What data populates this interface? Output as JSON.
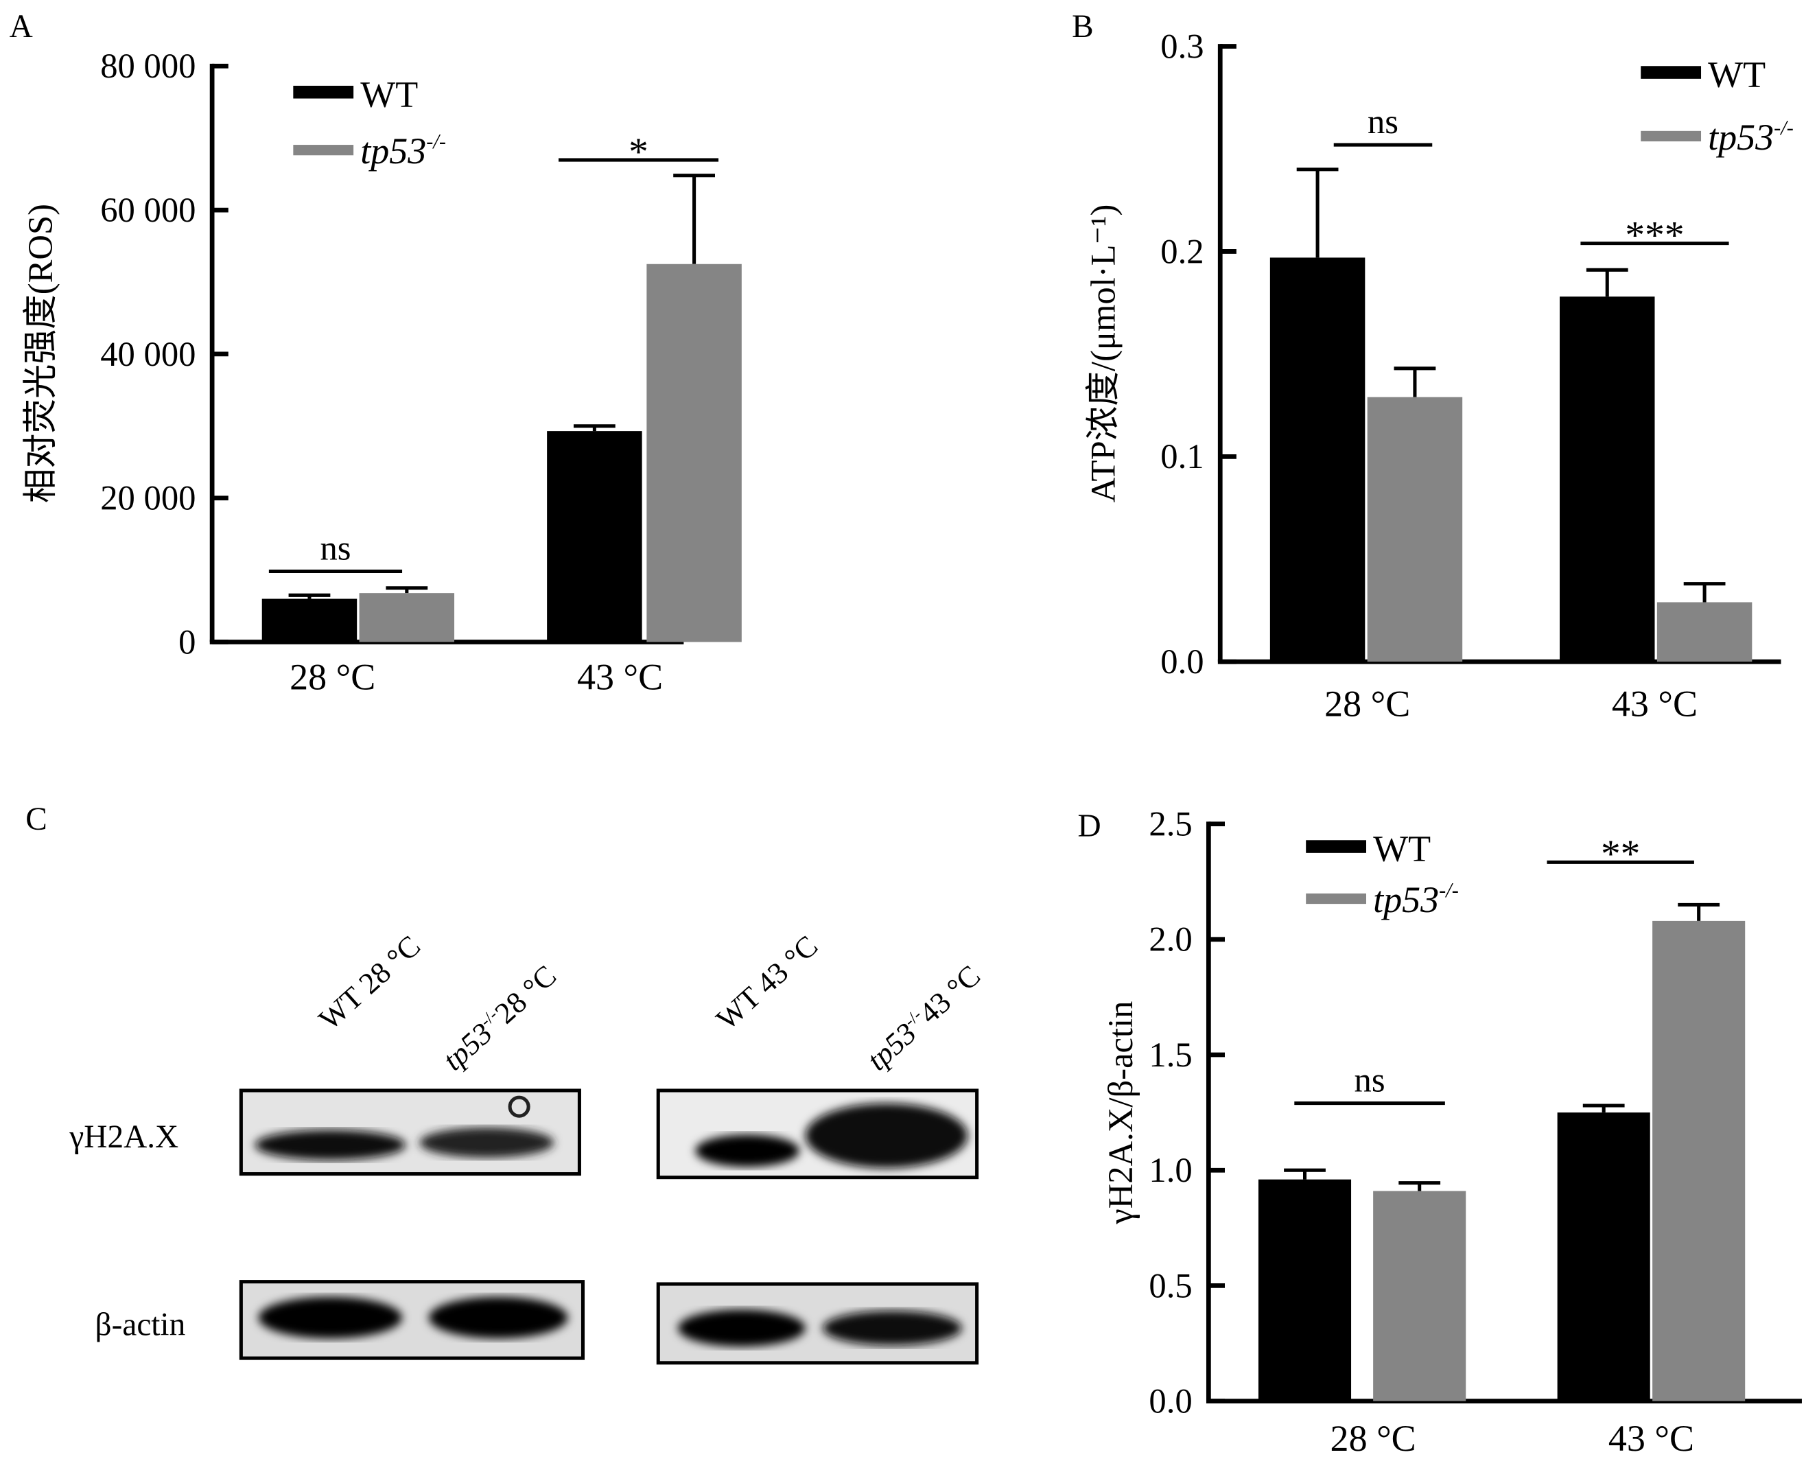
{
  "colors": {
    "wt": "#000000",
    "ko": "#858585"
  },
  "legend": {
    "wt": "WT",
    "ko": "tp53",
    "ko_sup": "-/-"
  },
  "chart_data": [
    {
      "panel": "A",
      "type": "bar",
      "ylabel": "相对荧光强度(ROS)",
      "ylim": [
        0,
        80000
      ],
      "yticks": [
        0,
        20000,
        40000,
        60000,
        80000
      ],
      "ytick_labels": [
        "0",
        "20 000",
        "40 000",
        "60 000",
        "80 000"
      ],
      "categories": [
        "28 °C",
        "43 °C"
      ],
      "series": [
        {
          "name": "WT",
          "values": [
            6000,
            29300
          ],
          "errors": [
            500,
            700
          ]
        },
        {
          "name": "tp53-/-",
          "values": [
            6800,
            52500
          ],
          "errors": [
            700,
            12300
          ]
        }
      ],
      "significance": [
        "ns",
        "*"
      ],
      "legend_position": "top-left"
    },
    {
      "panel": "B",
      "type": "bar",
      "ylabel": "ATP浓度/(μmol·L⁻¹)",
      "ylim": [
        0,
        0.3
      ],
      "yticks": [
        0,
        0.1,
        0.2,
        0.3
      ],
      "ytick_labels": [
        "0.0",
        "0.1",
        "0.2",
        "0.3"
      ],
      "categories": [
        "28 °C",
        "43 °C"
      ],
      "series": [
        {
          "name": "WT",
          "values": [
            0.197,
            0.178
          ],
          "errors": [
            0.043,
            0.013
          ]
        },
        {
          "name": "tp53-/-",
          "values": [
            0.129,
            0.029
          ],
          "errors": [
            0.014,
            0.009
          ]
        }
      ],
      "significance": [
        "ns",
        "***"
      ],
      "legend_position": "top-right"
    },
    {
      "panel": "D",
      "type": "bar",
      "ylabel": "γH2A.X/β-actin",
      "ylim": [
        0,
        2.5
      ],
      "yticks": [
        0,
        0.5,
        1,
        1.5,
        2,
        2.5
      ],
      "ytick_labels": [
        "0.0",
        "0.5",
        "1.0",
        "1.5",
        "2.0",
        "2.5"
      ],
      "categories": [
        "28 °C",
        "43 °C"
      ],
      "series": [
        {
          "name": "WT",
          "values": [
            0.96,
            1.25
          ],
          "errors": [
            0.04,
            0.03
          ]
        },
        {
          "name": "tp53-/-",
          "values": [
            0.91,
            2.08
          ],
          "errors": [
            0.035,
            0.07
          ]
        }
      ],
      "significance": [
        "ns",
        "**"
      ],
      "legend_position": "top-left"
    }
  ],
  "blot": {
    "panel": "C",
    "lanes": [
      "WT 28 °C",
      "tp53-/- 28 °C",
      "WT 43 °C",
      "tp53-/- 43 °C"
    ],
    "lane_names": [
      "WT 28 °C",
      "28 °C",
      "WT 43 °C",
      "43 °C"
    ],
    "rows": [
      "γH2A.X",
      "β-actin"
    ]
  }
}
